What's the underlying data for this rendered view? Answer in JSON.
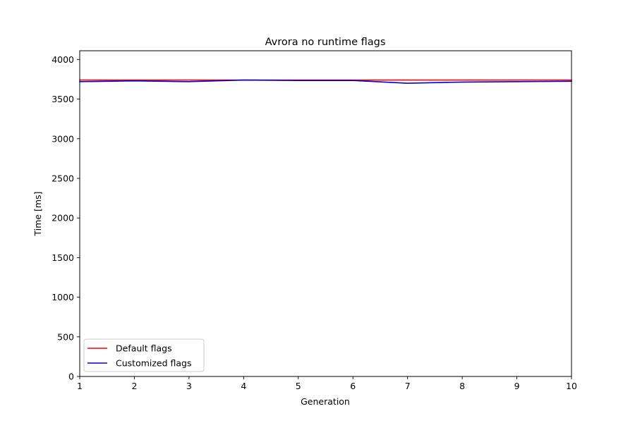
{
  "chart_data": {
    "type": "line",
    "title": "Avrora no runtime flags",
    "xlabel": "Generation",
    "ylabel": "Time [ms]",
    "xlim": [
      1,
      10
    ],
    "ylim": [
      0,
      4110
    ],
    "xticks": [
      1,
      2,
      3,
      4,
      5,
      6,
      7,
      8,
      9,
      10
    ],
    "yticks": [
      0,
      500,
      1000,
      1500,
      2000,
      2500,
      3000,
      3500,
      4000
    ],
    "grid": false,
    "legend_position": "lower-left",
    "x": [
      1,
      2,
      3,
      4,
      5,
      6,
      7,
      8,
      9,
      10
    ],
    "series": [
      {
        "name": "Default flags",
        "color": "#ff0000",
        "values": [
          3740,
          3740,
          3740,
          3740,
          3740,
          3740,
          3740,
          3740,
          3740,
          3740
        ]
      },
      {
        "name": "Customized flags",
        "color": "#0000cc",
        "values": [
          3720,
          3730,
          3720,
          3740,
          3735,
          3735,
          3700,
          3715,
          3720,
          3725
        ]
      }
    ]
  }
}
